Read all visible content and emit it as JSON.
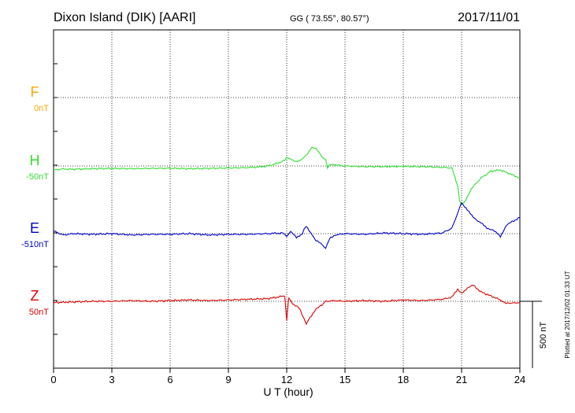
{
  "header": {
    "station": "Dixon Island (DIK)  [AARI]",
    "coords": "GG ( 73.55°,  80.57°)",
    "date": "2017/11/01"
  },
  "footer": {
    "plotted": "Plotted at 2017/12/02 01:33 UT"
  },
  "colors": {
    "F": "#f5a800",
    "H": "#33dd33",
    "E": "#0000cc",
    "Z": "#dd0000",
    "axis": "#000000",
    "grid": "#000000"
  },
  "chart_data": {
    "type": "line",
    "xlabel": "U T (hour)",
    "xlim": [
      0,
      24
    ],
    "xticks": [
      "0",
      "3",
      "6",
      "9",
      "12",
      "15",
      "18",
      "21",
      "24"
    ],
    "scale_bar": {
      "label": "500 nT",
      "value_nT": 500
    },
    "series": [
      {
        "name": "F",
        "baseline": "0nT",
        "x": [],
        "values": []
      },
      {
        "name": "H",
        "baseline": "-50nT",
        "x": [
          0,
          0.5,
          1,
          2,
          3,
          4,
          5,
          6,
          7,
          8,
          9,
          10,
          10.8,
          11.3,
          11.8,
          12.0,
          12.3,
          12.5,
          12.8,
          13.0,
          13.3,
          13.5,
          13.8,
          14.0,
          14.1,
          14.3,
          14.6,
          15,
          16,
          17,
          18,
          19,
          20,
          20.5,
          20.8,
          20.9,
          21.0,
          21.2,
          21.5,
          22,
          22.5,
          23,
          23.5,
          24
        ],
        "values": [
          -30,
          -22,
          -25,
          -20,
          -18,
          -20,
          -18,
          -17,
          -20,
          -18,
          -15,
          -12,
          -5,
          10,
          35,
          60,
          45,
          30,
          55,
          80,
          140,
          130,
          70,
          45,
          -10,
          15,
          5,
          0,
          -5,
          -5,
          -3,
          -5,
          -10,
          -15,
          -150,
          -260,
          -290,
          -260,
          -170,
          -90,
          -40,
          -30,
          -60,
          -90
        ]
      },
      {
        "name": "E",
        "baseline": "-510nT",
        "x": [
          0,
          0.5,
          1,
          2,
          3,
          4,
          5,
          6,
          7,
          8,
          9,
          10,
          11,
          11.8,
          12.0,
          12.2,
          12.5,
          12.8,
          13.0,
          13.3,
          13.5,
          13.8,
          14.0,
          14.2,
          14.5,
          15,
          16,
          17,
          18,
          19,
          20,
          20.5,
          21.0,
          21.3,
          21.6,
          22,
          22.3,
          22.6,
          23,
          23.3,
          23.6,
          24
        ],
        "values": [
          20,
          -10,
          0,
          -5,
          0,
          -10,
          -5,
          -5,
          0,
          -10,
          -5,
          -5,
          0,
          5,
          -20,
          15,
          -30,
          0,
          60,
          -10,
          -50,
          -80,
          -110,
          -40,
          -10,
          0,
          -5,
          5,
          0,
          -5,
          5,
          40,
          230,
          180,
          120,
          80,
          40,
          30,
          -20,
          60,
          90,
          120
        ]
      },
      {
        "name": "Z",
        "baseline": "50nT",
        "x": [
          0,
          1,
          2,
          3,
          4,
          5,
          6,
          7,
          8,
          9,
          10,
          11,
          11.5,
          11.9,
          12.0,
          12.1,
          12.3,
          12.6,
          12.8,
          13.0,
          13.2,
          13.5,
          13.8,
          14.0,
          14.5,
          15,
          16,
          17,
          18,
          19,
          20,
          20.5,
          20.8,
          21.0,
          21.3,
          21.6,
          22,
          22.5,
          23,
          23.3,
          24
        ],
        "values": [
          -10,
          -5,
          0,
          0,
          5,
          0,
          5,
          10,
          5,
          10,
          15,
          20,
          30,
          40,
          -150,
          30,
          -20,
          -40,
          -100,
          -170,
          -120,
          -60,
          -30,
          0,
          5,
          0,
          5,
          0,
          10,
          5,
          15,
          30,
          90,
          60,
          100,
          120,
          70,
          40,
          10,
          -15,
          -10
        ]
      }
    ]
  }
}
